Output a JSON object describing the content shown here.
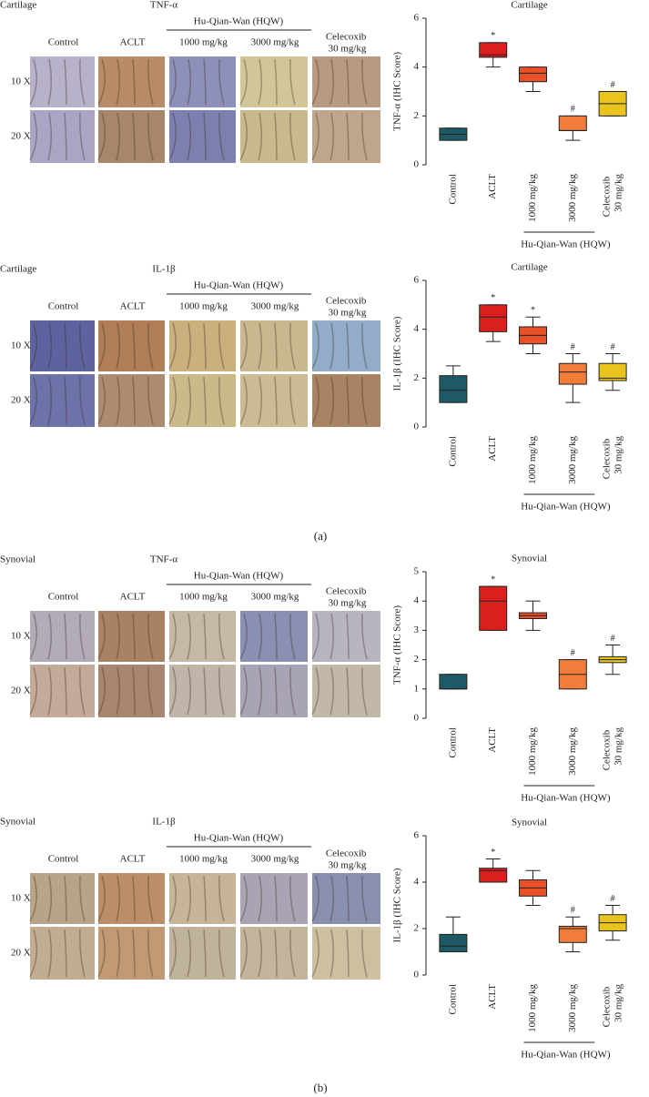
{
  "chart_data": [
    {
      "type": "box",
      "title": "Cartilage",
      "y_label": "TNF-α (IHC Score)",
      "categories": [
        "Control",
        "ACLT",
        "1000 mg/kg",
        "3000 mg/kg",
        "Celecoxib 30 mg/kg"
      ],
      "group_label": "Hu-Qian-Wan (HQW)",
      "colors": [
        "#1d5a66",
        "#d9201e",
        "#e9502a",
        "#f27c3a",
        "#e9c41c"
      ],
      "stats": [
        {
          "min": 1,
          "q1": 1,
          "median": 1.25,
          "q3": 1.5,
          "max": 1.5
        },
        {
          "min": 4,
          "q1": 4.4,
          "median": 4.5,
          "q3": 5,
          "max": 5
        },
        {
          "min": 3,
          "q1": 3.4,
          "median": 3.75,
          "q3": 4,
          "max": 4
        },
        {
          "min": 1,
          "q1": 1.4,
          "median": 1.4,
          "q3": 2,
          "max": 2
        },
        {
          "min": 2,
          "q1": 2,
          "median": 2.5,
          "q3": 3,
          "max": 3
        }
      ],
      "markers": [
        null,
        "*",
        null,
        "#",
        "#"
      ],
      "ylim": [
        0,
        6
      ],
      "yticks": [
        0,
        2,
        4,
        6
      ]
    },
    {
      "type": "box",
      "title": "Cartilage",
      "y_label": "IL-1β (IHC Score)",
      "categories": [
        "Control",
        "ACLT",
        "1000 mg/kg",
        "3000 mg/kg",
        "Celecoxib 30 mg/kg"
      ],
      "group_label": "Hu-Qian-Wan (HQW)",
      "colors": [
        "#1d5a66",
        "#d9201e",
        "#e9502a",
        "#f27c3a",
        "#e9c41c"
      ],
      "stats": [
        {
          "min": 1,
          "q1": 1,
          "median": 1.5,
          "q3": 2.1,
          "max": 2.5
        },
        {
          "min": 3.5,
          "q1": 3.9,
          "median": 4.5,
          "q3": 5,
          "max": 5
        },
        {
          "min": 3,
          "q1": 3.4,
          "median": 3.75,
          "q3": 4.1,
          "max": 4.5
        },
        {
          "min": 1,
          "q1": 1.75,
          "median": 2.25,
          "q3": 2.6,
          "max": 3
        },
        {
          "min": 1.5,
          "q1": 1.9,
          "median": 2,
          "q3": 2.6,
          "max": 3
        }
      ],
      "markers": [
        null,
        "*",
        "*",
        "#",
        "#"
      ],
      "ylim": [
        0,
        6
      ],
      "yticks": [
        0,
        2,
        4,
        6
      ]
    },
    {
      "type": "box",
      "title": "Synovial",
      "y_label": "TNF-α (IHC Score)",
      "categories": [
        "Control",
        "ACLT",
        "1000 mg/kg",
        "3000 mg/kg",
        "Celecoxib 30 mg/kg"
      ],
      "group_label": "Hu-Qian-Wan (HQW)",
      "colors": [
        "#1d5a66",
        "#d9201e",
        "#e9502a",
        "#f27c3a",
        "#e9c41c"
      ],
      "stats": [
        {
          "min": 1,
          "q1": 1,
          "median": 1,
          "q3": 1.5,
          "max": 1.5
        },
        {
          "min": 3,
          "q1": 3,
          "median": 4,
          "q3": 4.5,
          "max": 4.5
        },
        {
          "min": 3,
          "q1": 3.4,
          "median": 3.5,
          "q3": 3.6,
          "max": 4
        },
        {
          "min": 1,
          "q1": 1,
          "median": 1.5,
          "q3": 2,
          "max": 2
        },
        {
          "min": 1.5,
          "q1": 1.9,
          "median": 2,
          "q3": 2.1,
          "max": 2.5
        }
      ],
      "markers": [
        null,
        "*",
        null,
        "#",
        "#"
      ],
      "ylim": [
        0,
        5
      ],
      "yticks": [
        0,
        1,
        2,
        3,
        4,
        5
      ]
    },
    {
      "type": "box",
      "title": "Synovial",
      "y_label": "IL-1β (IHC Score)",
      "categories": [
        "Control",
        "ACLT",
        "1000 mg/kg",
        "3000 mg/kg",
        "Celecoxib 30 mg/kg"
      ],
      "group_label": "Hu-Qian-Wan (HQW)",
      "colors": [
        "#1d5a66",
        "#d9201e",
        "#e9502a",
        "#f27c3a",
        "#e9c41c"
      ],
      "stats": [
        {
          "min": 1,
          "q1": 1,
          "median": 1.25,
          "q3": 1.75,
          "max": 2.5
        },
        {
          "min": 4,
          "q1": 4,
          "median": 4.5,
          "q3": 4.6,
          "max": 5
        },
        {
          "min": 3,
          "q1": 3.4,
          "median": 3.75,
          "q3": 4.1,
          "max": 4.5
        },
        {
          "min": 1,
          "q1": 1.4,
          "median": 2,
          "q3": 2.1,
          "max": 2.5
        },
        {
          "min": 1.5,
          "q1": 1.9,
          "median": 2.25,
          "q3": 2.6,
          "max": 3
        }
      ],
      "markers": [
        null,
        "*",
        null,
        "#",
        "#"
      ],
      "ylim": [
        0,
        6
      ],
      "yticks": [
        0,
        2,
        4,
        6
      ]
    }
  ],
  "panels": [
    {
      "section": "Cartilage",
      "marker": "TNF-α",
      "group": "Hu-Qian-Wan (HQW)",
      "columns": [
        "Control",
        "ACLT",
        "1000 mg/kg",
        "3000 mg/kg",
        "Celecoxib 30 mg/kg"
      ],
      "rows": [
        "10 X",
        "20 X"
      ]
    },
    {
      "section": "Cartilage",
      "marker": "IL-1β",
      "group": "Hu-Qian-Wan (HQW)",
      "columns": [
        "Control",
        "ACLT",
        "1000 mg/kg",
        "3000 mg/kg",
        "Celecoxib 30 mg/kg"
      ],
      "rows": [
        "10 X",
        "20 X"
      ]
    },
    {
      "section": "Synovial",
      "marker": "TNF-α",
      "group": "Hu-Qian-Wan (HQW)",
      "columns": [
        "Control",
        "ACLT",
        "1000 mg/kg",
        "3000 mg/kg",
        "Celecoxib 30 mg/kg"
      ],
      "rows": [
        "10 X",
        "20 X"
      ]
    },
    {
      "section": "Synovial",
      "marker": "IL-1β",
      "group": "Hu-Qian-Wan (HQW)",
      "columns": [
        "Control",
        "ACLT",
        "1000 mg/kg",
        "3000 mg/kg",
        "Celecoxib 30 mg/kg"
      ],
      "rows": [
        "10 X",
        "20 X"
      ]
    }
  ],
  "figure_labels": [
    "(a)",
    "(b)"
  ]
}
